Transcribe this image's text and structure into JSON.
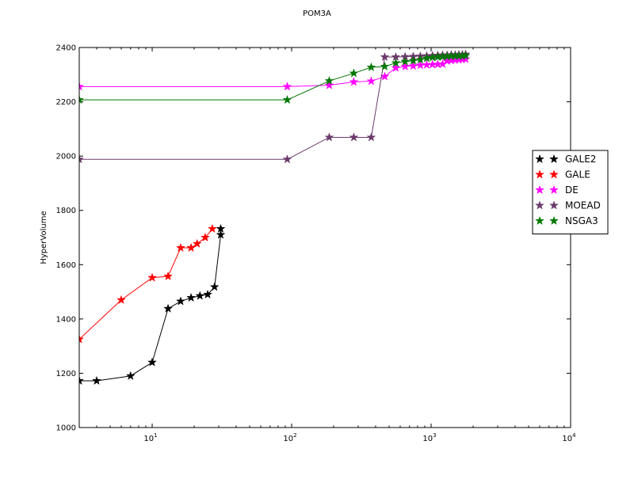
{
  "chart_data": {
    "type": "line",
    "title": "POM3A",
    "xlabel": "",
    "ylabel": "HyperVolume",
    "xscale": "log",
    "xlim": [
      3,
      10000
    ],
    "ylim": [
      1000,
      2400
    ],
    "xticks": [
      {
        "value": 10,
        "base": "10",
        "exp": "1"
      },
      {
        "value": 100,
        "base": "10",
        "exp": "2"
      },
      {
        "value": 1000,
        "base": "10",
        "exp": "3"
      },
      {
        "value": 10000,
        "base": "10",
        "exp": "4"
      }
    ],
    "yticks": [
      {
        "value": 1000,
        "label": "1000"
      },
      {
        "value": 1200,
        "label": "1200"
      },
      {
        "value": 1400,
        "label": "1400"
      },
      {
        "value": 1600,
        "label": "1600"
      },
      {
        "value": 1800,
        "label": "1800"
      },
      {
        "value": 2000,
        "label": "2000"
      },
      {
        "value": 2200,
        "label": "2200"
      },
      {
        "value": 2400,
        "label": "2400"
      }
    ],
    "grid": false,
    "legend_position": "right",
    "series": [
      {
        "name": "GALE2",
        "color": "#000000",
        "marker": "star",
        "points": [
          [
            3,
            1172
          ],
          [
            4,
            1172
          ],
          [
            7,
            1190
          ],
          [
            10,
            1240
          ],
          [
            13,
            1438
          ],
          [
            16,
            1465
          ],
          [
            19,
            1478
          ],
          [
            22,
            1485
          ],
          [
            25,
            1490
          ],
          [
            28,
            1518
          ],
          [
            31,
            1710
          ],
          [
            31,
            1732
          ]
        ]
      },
      {
        "name": "GALE",
        "color": "#ff0000",
        "marker": "star",
        "points": [
          [
            3,
            1325
          ],
          [
            6,
            1470
          ],
          [
            10,
            1552
          ],
          [
            13,
            1557
          ],
          [
            16,
            1662
          ],
          [
            19,
            1662
          ],
          [
            21,
            1677
          ],
          [
            24,
            1700
          ],
          [
            27,
            1732
          ]
        ]
      },
      {
        "name": "DE",
        "color": "#ff00ff",
        "marker": "star",
        "points": [
          [
            3,
            2256
          ],
          [
            93,
            2256
          ],
          [
            186,
            2261
          ],
          [
            279,
            2273
          ],
          [
            372,
            2276
          ],
          [
            465,
            2293
          ],
          [
            558,
            2325
          ],
          [
            651,
            2330
          ],
          [
            744,
            2332
          ],
          [
            837,
            2335
          ],
          [
            930,
            2336
          ],
          [
            1023,
            2337
          ],
          [
            1116,
            2338
          ],
          [
            1209,
            2339
          ],
          [
            1302,
            2350
          ],
          [
            1395,
            2352
          ],
          [
            1488,
            2354
          ],
          [
            1581,
            2355
          ],
          [
            1674,
            2356
          ],
          [
            1767,
            2357
          ]
        ]
      },
      {
        "name": "MOEAD",
        "color": "#6b3a6b",
        "marker": "star",
        "points": [
          [
            3,
            1988
          ],
          [
            93,
            1988
          ],
          [
            186,
            2069
          ],
          [
            279,
            2069
          ],
          [
            372,
            2069
          ],
          [
            465,
            2365
          ],
          [
            558,
            2365
          ],
          [
            651,
            2366
          ],
          [
            744,
            2367
          ],
          [
            837,
            2368
          ],
          [
            930,
            2369
          ],
          [
            1023,
            2370
          ],
          [
            1116,
            2371
          ],
          [
            1209,
            2372
          ],
          [
            1302,
            2372
          ],
          [
            1395,
            2373
          ],
          [
            1488,
            2373
          ],
          [
            1581,
            2374
          ],
          [
            1674,
            2374
          ],
          [
            1767,
            2375
          ]
        ]
      },
      {
        "name": "NSGA3",
        "color": "#007700",
        "marker": "star",
        "points": [
          [
            3,
            2207
          ],
          [
            93,
            2207
          ],
          [
            186,
            2277
          ],
          [
            279,
            2305
          ],
          [
            372,
            2327
          ],
          [
            465,
            2330
          ],
          [
            558,
            2343
          ],
          [
            651,
            2348
          ],
          [
            744,
            2351
          ],
          [
            837,
            2355
          ],
          [
            930,
            2360
          ],
          [
            1023,
            2363
          ],
          [
            1116,
            2365
          ],
          [
            1209,
            2366
          ],
          [
            1302,
            2367
          ],
          [
            1395,
            2368
          ],
          [
            1488,
            2368
          ],
          [
            1581,
            2369
          ],
          [
            1674,
            2369
          ],
          [
            1767,
            2370
          ]
        ]
      }
    ]
  }
}
